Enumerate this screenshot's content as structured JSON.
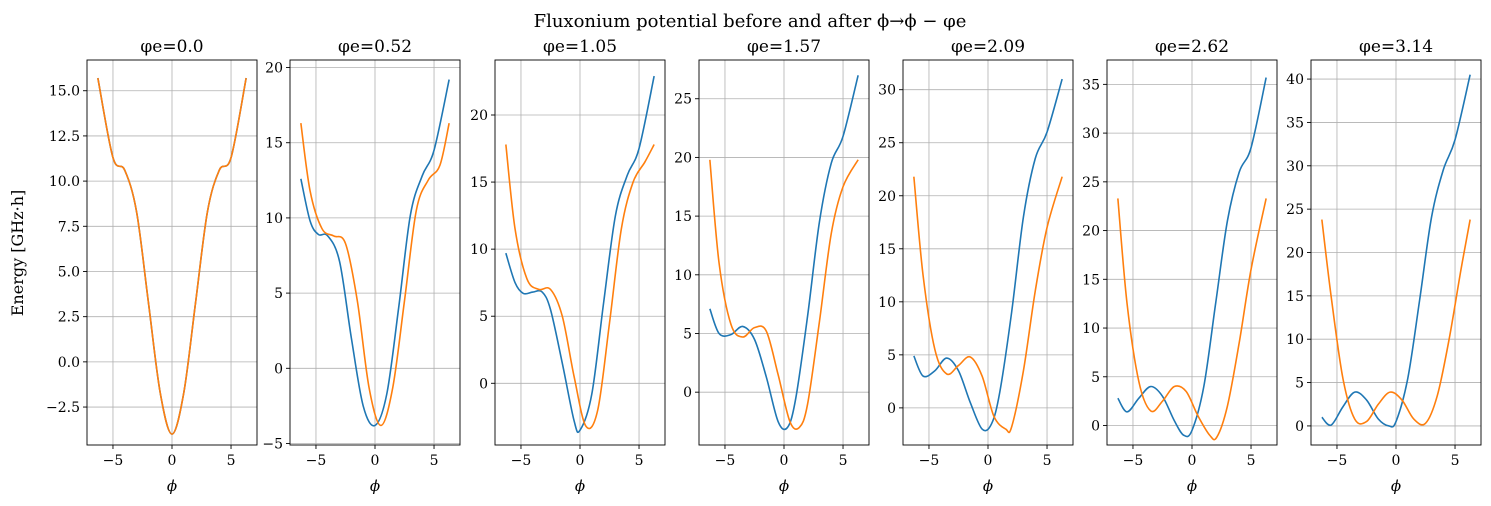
{
  "figure": {
    "title_html": "Fluxonium potential before and after ϕ→ϕ − φ",
    "title_text": "Fluxonium potential before and after ϕ→ϕ − φe",
    "ylabel": "Energy [GHz·h]",
    "xlabel": "ϕ",
    "colors": {
      "blue": "#1f77b4",
      "orange": "#ff7f0e",
      "grid": "#b0b0b0",
      "axis": "#000000"
    }
  },
  "chart_data": [
    {
      "type": "line",
      "title": "φe=0.0",
      "phi_e": 0.0,
      "xlim": [
        -7.2,
        7.2
      ],
      "ylim": [
        -4.6,
        16.7
      ],
      "xticks": [
        -5,
        0,
        5
      ],
      "xtick_labels": [
        "−5",
        "0",
        "5"
      ],
      "yticks": [
        -2.5,
        0.0,
        2.5,
        5.0,
        7.5,
        10.0,
        12.5,
        15.0
      ],
      "ytick_labels": [
        "−2.5",
        "0.0",
        "2.5",
        "5.0",
        "7.5",
        "10.0",
        "12.5",
        "15.0"
      ],
      "grid": true,
      "series": [
        {
          "color": "#1f77b4",
          "x": [
            -6.28,
            -5,
            -4,
            -3,
            -2,
            -1,
            0,
            1,
            2,
            3,
            4,
            5,
            6.28
          ],
          "y": [
            15.7,
            11.3,
            10.6,
            8.3,
            3.3,
            -1.7,
            -4.0,
            -1.7,
            3.3,
            8.3,
            10.6,
            11.3,
            15.7
          ]
        },
        {
          "color": "#ff7f0e",
          "x": [
            -6.28,
            -5,
            -4,
            -3,
            -2,
            -1,
            0,
            1,
            2,
            3,
            4,
            5,
            6.28
          ],
          "y": [
            15.7,
            11.3,
            10.6,
            8.3,
            3.3,
            -1.7,
            -4.0,
            -1.7,
            3.3,
            8.3,
            10.6,
            11.3,
            15.7
          ]
        }
      ]
    },
    {
      "type": "line",
      "title": "φe=0.52",
      "phi_e": 0.52,
      "xlim": [
        -7.2,
        7.2
      ],
      "ylim": [
        -5.1,
        20.5
      ],
      "xticks": [
        -5,
        0,
        5
      ],
      "xtick_labels": [
        "−5",
        "0",
        "5"
      ],
      "yticks": [
        -5,
        0,
        5,
        10,
        15,
        20
      ],
      "ytick_labels": [
        "−5",
        "0",
        "5",
        "10",
        "15",
        "20"
      ],
      "grid": true,
      "series": [
        {
          "color": "#1f77b4",
          "x": [
            -6.28,
            -5.5,
            -4.8,
            -4,
            -3,
            -2,
            -1,
            0,
            1,
            2,
            3,
            4,
            5,
            6.28
          ],
          "y": [
            12.6,
            9.8,
            8.9,
            8.8,
            7.1,
            2.0,
            -2.5,
            -3.8,
            -1.7,
            4.0,
            10.2,
            12.8,
            14.5,
            19.2
          ]
        },
        {
          "color": "#ff7f0e",
          "x": [
            -6.28,
            -5.5,
            -4.5,
            -3.5,
            -2.5,
            -1.5,
            -0.5,
            0.5,
            1.5,
            2.5,
            3.5,
            4.5,
            5.5,
            6.28
          ],
          "y": [
            16.3,
            11.8,
            9.3,
            8.8,
            8.3,
            4.5,
            -1.3,
            -3.8,
            -1.3,
            4.5,
            10.5,
            12.5,
            13.5,
            16.3
          ]
        }
      ]
    },
    {
      "type": "line",
      "title": "φe=1.05",
      "phi_e": 1.05,
      "xlim": [
        -7.2,
        7.2
      ],
      "ylim": [
        -4.6,
        24.1
      ],
      "xticks": [
        -5,
        0,
        5
      ],
      "xtick_labels": [
        "−5",
        "0",
        "5"
      ],
      "yticks": [
        0,
        5,
        10,
        15,
        20
      ],
      "ytick_labels": [
        "0",
        "5",
        "10",
        "15",
        "20"
      ],
      "grid": true,
      "series": [
        {
          "color": "#1f77b4",
          "x": [
            -6.28,
            -5.5,
            -4.8,
            -4,
            -3.2,
            -2.5,
            -1.5,
            -0.5,
            0,
            1,
            2,
            3,
            4,
            5,
            6.28
          ],
          "y": [
            9.7,
            7.5,
            6.7,
            6.8,
            6.8,
            5.5,
            1.5,
            -2.8,
            -3.5,
            -0.8,
            6.0,
            12.5,
            15.5,
            17.5,
            22.9
          ]
        },
        {
          "color": "#ff7f0e",
          "x": [
            -6.28,
            -5.5,
            -4.5,
            -3.5,
            -2.5,
            -1.5,
            -0.5,
            0.5,
            1.5,
            2.5,
            3.5,
            4.5,
            5.5,
            6.28
          ],
          "y": [
            17.8,
            11.5,
            7.8,
            7.0,
            7.0,
            5.0,
            0.5,
            -3.2,
            -2.0,
            4.5,
            11.5,
            15.0,
            16.5,
            17.8
          ]
        }
      ]
    },
    {
      "type": "line",
      "title": "φe=1.57",
      "phi_e": 1.57,
      "xlim": [
        -7.2,
        7.2
      ],
      "ylim": [
        -4.5,
        28.3
      ],
      "xticks": [
        -5,
        0,
        5
      ],
      "xtick_labels": [
        "−5",
        "0",
        "5"
      ],
      "yticks": [
        0,
        5,
        10,
        15,
        20,
        25
      ],
      "ytick_labels": [
        "0",
        "5",
        "10",
        "15",
        "20",
        "25"
      ],
      "grid": true,
      "series": [
        {
          "color": "#1f77b4",
          "x": [
            -6.28,
            -5.5,
            -4.5,
            -3.5,
            -2.5,
            -1.5,
            -0.5,
            0.3,
            1,
            2,
            3,
            4,
            5,
            6.28
          ],
          "y": [
            7.1,
            5.0,
            4.9,
            5.6,
            4.5,
            1.3,
            -2.5,
            -3.0,
            -0.5,
            6.5,
            14.5,
            19.5,
            21.8,
            27.0
          ]
        },
        {
          "color": "#ff7f0e",
          "x": [
            -6.28,
            -5.5,
            -4.5,
            -3.5,
            -2.5,
            -1.5,
            -0.5,
            0.5,
            1.3,
            2,
            3,
            4,
            5,
            6.28
          ],
          "y": [
            19.8,
            11.0,
            5.8,
            4.7,
            5.5,
            5.2,
            1.5,
            -2.5,
            -3.0,
            -1.0,
            6.0,
            13.5,
            17.5,
            19.8
          ]
        }
      ]
    },
    {
      "type": "line",
      "title": "φe=2.09",
      "phi_e": 2.09,
      "xlim": [
        -7.2,
        7.2
      ],
      "ylim": [
        -3.5,
        32.8
      ],
      "xticks": [
        -5,
        0,
        5
      ],
      "xtick_labels": [
        "−5",
        "0",
        "5"
      ],
      "yticks": [
        0,
        5,
        10,
        15,
        20,
        25,
        30
      ],
      "ytick_labels": [
        "0",
        "5",
        "10",
        "15",
        "20",
        "25",
        "30"
      ],
      "grid": true,
      "series": [
        {
          "color": "#1f77b4",
          "x": [
            -6.28,
            -5.5,
            -4.5,
            -3.5,
            -2.5,
            -1.5,
            -0.5,
            0.3,
            1,
            2,
            3,
            4,
            5,
            6.28
          ],
          "y": [
            4.9,
            3.0,
            3.5,
            4.7,
            3.5,
            0.5,
            -2.0,
            -1.5,
            1.5,
            9.0,
            18.0,
            23.5,
            26.0,
            31.0
          ]
        },
        {
          "color": "#ff7f0e",
          "x": [
            -6.28,
            -5.5,
            -4.5,
            -3.5,
            -2.5,
            -1.5,
            -0.5,
            0.5,
            1.5,
            2,
            3,
            4,
            5,
            6.28
          ],
          "y": [
            21.8,
            12.5,
            5.5,
            3.2,
            4.0,
            4.8,
            3.0,
            -0.8,
            -2.0,
            -1.8,
            3.5,
            11.0,
            17.0,
            21.8
          ]
        }
      ]
    },
    {
      "type": "line",
      "title": "φe=2.62",
      "phi_e": 2.62,
      "xlim": [
        -7.2,
        7.2
      ],
      "ylim": [
        -2.0,
        37.5
      ],
      "xticks": [
        -5,
        0,
        5
      ],
      "xtick_labels": [
        "−5",
        "0",
        "5"
      ],
      "yticks": [
        0,
        5,
        10,
        15,
        20,
        25,
        30,
        35
      ],
      "ytick_labels": [
        "0",
        "5",
        "10",
        "15",
        "20",
        "25",
        "30",
        "35"
      ],
      "grid": true,
      "series": [
        {
          "color": "#1f77b4",
          "x": [
            -6.28,
            -5.5,
            -4.5,
            -3.5,
            -2.5,
            -1.5,
            -0.7,
            0,
            1,
            2,
            3,
            4,
            5,
            6.28
          ],
          "y": [
            2.8,
            1.4,
            2.8,
            4.0,
            3.0,
            0.5,
            -1.0,
            -0.5,
            4.0,
            12.5,
            21.0,
            26.0,
            28.5,
            35.7
          ]
        },
        {
          "color": "#ff7f0e",
          "x": [
            -6.28,
            -5.5,
            -4.5,
            -3.5,
            -2.5,
            -1.5,
            -0.5,
            0.5,
            1.5,
            2.1,
            3,
            4,
            5,
            6.28
          ],
          "y": [
            23.3,
            12.5,
            4.5,
            1.5,
            2.5,
            4.0,
            3.5,
            1.0,
            -1.0,
            -1.2,
            2.0,
            8.5,
            16.0,
            23.3
          ]
        }
      ]
    },
    {
      "type": "line",
      "title": "φe=3.14",
      "phi_e": 3.14,
      "xlim": [
        -7.2,
        7.2
      ],
      "ylim": [
        -2.2,
        42.2
      ],
      "xticks": [
        -5,
        0,
        5
      ],
      "xtick_labels": [
        "−5",
        "0",
        "5"
      ],
      "yticks": [
        0,
        5,
        10,
        15,
        20,
        25,
        30,
        35,
        40
      ],
      "ytick_labels": [
        "0",
        "5",
        "10",
        "15",
        "20",
        "25",
        "30",
        "35",
        "40"
      ],
      "grid": true,
      "series": [
        {
          "color": "#1f77b4",
          "x": [
            -6.28,
            -5.5,
            -4.5,
            -3.5,
            -2.5,
            -1.5,
            -0.6,
            0,
            1,
            2,
            3,
            4,
            5,
            6.28
          ],
          "y": [
            1.0,
            0.1,
            2.2,
            3.9,
            3.0,
            0.8,
            0.0,
            0.5,
            5.5,
            14.5,
            24.0,
            29.5,
            33.0,
            40.5
          ]
        },
        {
          "color": "#ff7f0e",
          "x": [
            -6.28,
            -5.5,
            -4.5,
            -3.5,
            -2.5,
            -1.5,
            -0.5,
            0.5,
            1.5,
            2.5,
            3.5,
            4.5,
            5.5,
            6.28
          ],
          "y": [
            23.8,
            15.0,
            5.5,
            0.8,
            0.5,
            2.5,
            3.9,
            3.0,
            0.8,
            0.3,
            3.5,
            10.0,
            18.0,
            23.8
          ]
        }
      ]
    }
  ]
}
